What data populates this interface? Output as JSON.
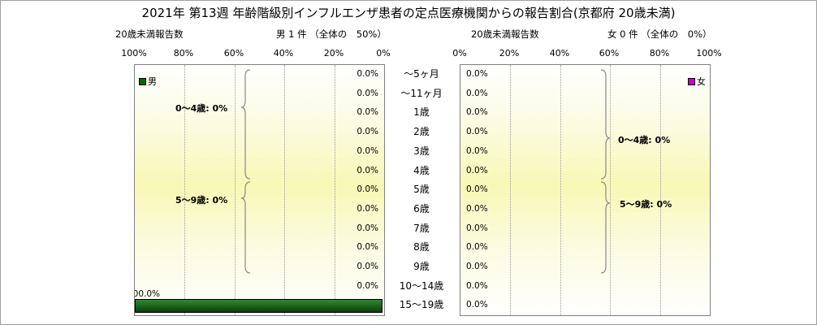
{
  "title": "2021年 第13週 年齢階級別インフルエンザ患者の定点医療機関からの報告割合(京都府 20歳未満)",
  "left_panel": {
    "subtitle_left": "20歳未満報告数",
    "subtitle_right": "男 1 件 （全体の　50%）",
    "ticks": [
      "100%",
      "80%",
      "60%",
      "40%",
      "20%",
      "0%"
    ],
    "legend": "男",
    "braces": [
      "0～4歳: 0%",
      "5～9歳: 0%"
    ]
  },
  "right_panel": {
    "subtitle_left": "20歳未満報告数",
    "subtitle_right": "女 0 件 （全体の　0%）",
    "ticks": [
      "0%",
      "20%",
      "40%",
      "60%",
      "80%",
      "100%"
    ],
    "legend": "女",
    "braces": [
      "0～4歳: 0%",
      "5～9歳: 0%"
    ]
  },
  "colors": {
    "male": "#006400",
    "female": "#cc00cc",
    "male_bar_gradient": [
      "#0a3d0a",
      "#2e8b2e"
    ]
  },
  "chart_data": [
    {
      "type": "bar",
      "orientation": "horizontal",
      "direction": "right-to-left",
      "title": "男",
      "categories": [
        "～5ヶ月",
        "～11ヶ月",
        "1歳",
        "2歳",
        "3歳",
        "4歳",
        "5歳",
        "6歳",
        "7歳",
        "8歳",
        "9歳",
        "10～14歳",
        "15～19歳"
      ],
      "series": [
        {
          "name": "男",
          "values": [
            0,
            0,
            0,
            0,
            0,
            0,
            0,
            0,
            0,
            0,
            0,
            0,
            100
          ]
        }
      ],
      "labels": [
        "0.0%",
        "0.0%",
        "0.0%",
        "0.0%",
        "0.0%",
        "0.0%",
        "0.0%",
        "0.0%",
        "0.0%",
        "0.0%",
        "0.0%",
        "0.0%",
        "100.0%"
      ],
      "xlim": [
        0,
        100
      ],
      "legend": "top-left"
    },
    {
      "type": "bar",
      "orientation": "horizontal",
      "direction": "left-to-right",
      "title": "女",
      "categories": [
        "～5ヶ月",
        "～11ヶ月",
        "1歳",
        "2歳",
        "3歳",
        "4歳",
        "5歳",
        "6歳",
        "7歳",
        "8歳",
        "9歳",
        "10～14歳",
        "15～19歳"
      ],
      "series": [
        {
          "name": "女",
          "values": [
            0,
            0,
            0,
            0,
            0,
            0,
            0,
            0,
            0,
            0,
            0,
            0,
            0
          ]
        }
      ],
      "labels": [
        "0.0%",
        "0.0%",
        "0.0%",
        "0.0%",
        "0.0%",
        "0.0%",
        "0.0%",
        "0.0%",
        "0.0%",
        "0.0%",
        "0.0%",
        "0.0%",
        "0.0%"
      ],
      "xlim": [
        0,
        100
      ],
      "legend": "top-right"
    }
  ]
}
